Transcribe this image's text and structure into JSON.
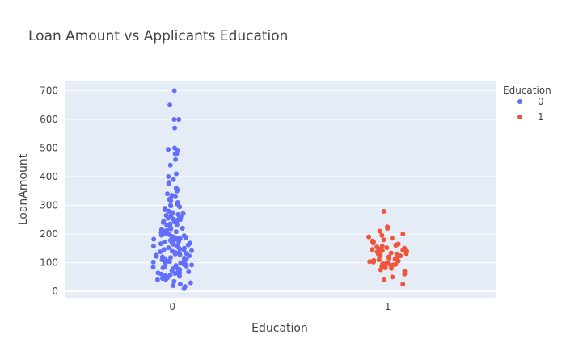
{
  "chart_data": {
    "type": "scatter",
    "title": "Loan Amount vs Applicants Education",
    "xlabel": "Education",
    "ylabel": "LoanAmount",
    "categories": [
      "0",
      "1"
    ],
    "ylim": [
      -25,
      735
    ],
    "yticks": [
      0,
      100,
      200,
      300,
      400,
      500,
      600,
      700
    ],
    "grid": true,
    "legend": {
      "title": "Education",
      "placement": "top-right"
    },
    "colors": {
      "0": "#636efa",
      "1": "#ef553b",
      "plot_bg": "#e5ecf6"
    },
    "series": [
      {
        "name": "0",
        "category": "0",
        "values": [
          700,
          650,
          600,
          600,
          570,
          500,
          495,
          490,
          480,
          480,
          460,
          440,
          410,
          400,
          390,
          380,
          375,
          360,
          355,
          350,
          340,
          335,
          330,
          325,
          320,
          315,
          310,
          305,
          300,
          298,
          295,
          290,
          285,
          280,
          278,
          275,
          272,
          270,
          268,
          265,
          262,
          260,
          258,
          255,
          252,
          250,
          248,
          245,
          242,
          240,
          238,
          235,
          232,
          230,
          228,
          225,
          222,
          220,
          218,
          215,
          212,
          210,
          208,
          205,
          202,
          200,
          198,
          196,
          194,
          192,
          190,
          188,
          186,
          184,
          182,
          180,
          178,
          176,
          174,
          172,
          170,
          168,
          166,
          164,
          162,
          160,
          158,
          156,
          154,
          152,
          150,
          148,
          146,
          144,
          142,
          140,
          138,
          136,
          134,
          132,
          130,
          128,
          126,
          124,
          122,
          120,
          118,
          116,
          114,
          112,
          110,
          108,
          106,
          104,
          102,
          100,
          98,
          96,
          94,
          92,
          90,
          88,
          86,
          84,
          82,
          80,
          78,
          76,
          74,
          72,
          70,
          68,
          66,
          64,
          62,
          60,
          58,
          56,
          54,
          52,
          50,
          48,
          45,
          42,
          40,
          35,
          30,
          25,
          20,
          17,
          9
        ]
      },
      {
        "name": "1",
        "category": "1",
        "values": [
          279,
          225,
          220,
          210,
          200,
          195,
          190,
          185,
          180,
          175,
          172,
          170,
          168,
          165,
          162,
          160,
          158,
          155,
          152,
          150,
          148,
          146,
          144,
          142,
          140,
          138,
          136,
          134,
          132,
          130,
          128,
          126,
          124,
          122,
          120,
          118,
          116,
          114,
          112,
          110,
          108,
          106,
          104,
          102,
          100,
          98,
          96,
          94,
          92,
          90,
          88,
          85,
          82,
          80,
          75,
          70,
          60,
          50,
          40,
          25
        ]
      }
    ]
  }
}
